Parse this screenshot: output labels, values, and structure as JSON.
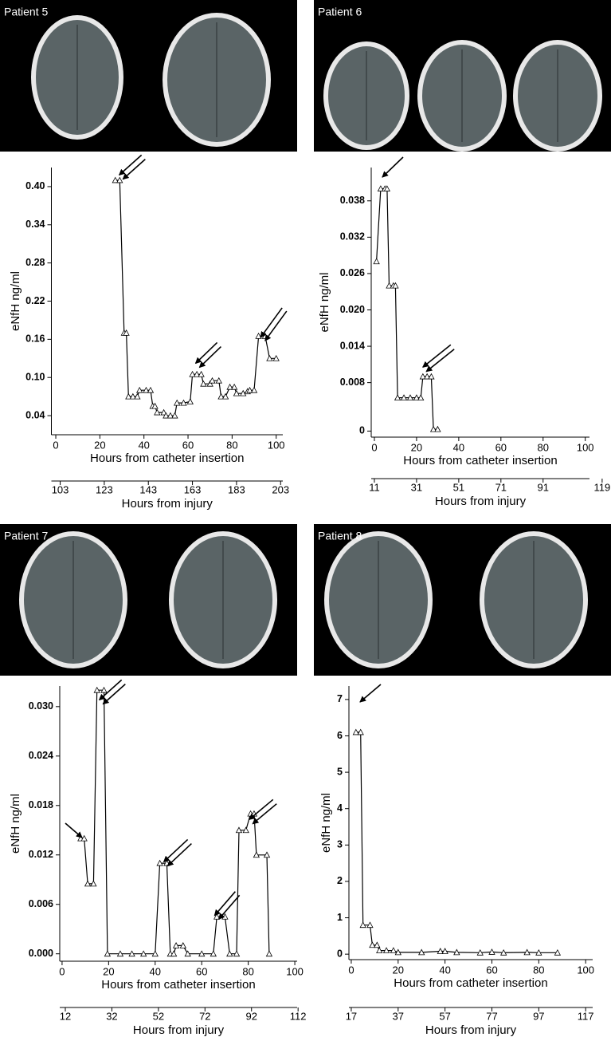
{
  "chart_data": [
    {
      "type": "line",
      "title": "Patient 5",
      "ylabel": "eNfH ng/ml",
      "xlabel": "Hours from catheter insertion",
      "x2label": "Hours from injury",
      "color": "#000000",
      "x": [
        27,
        29,
        31,
        32,
        33,
        35,
        37,
        38,
        41,
        43,
        44,
        45,
        46,
        49,
        50,
        52,
        54,
        55,
        58,
        61,
        62,
        64,
        66,
        67,
        70,
        71,
        74,
        75,
        77,
        79,
        81,
        82,
        85,
        87,
        88,
        90,
        92,
        95,
        97,
        100
      ],
      "values": [
        0.41,
        0.41,
        0.17,
        0.17,
        0.07,
        0.07,
        0.07,
        0.08,
        0.08,
        0.08,
        0.055,
        0.055,
        0.045,
        0.045,
        0.04,
        0.04,
        0.04,
        0.06,
        0.06,
        0.062,
        0.105,
        0.105,
        0.105,
        0.09,
        0.09,
        0.095,
        0.095,
        0.07,
        0.07,
        0.085,
        0.085,
        0.075,
        0.075,
        0.078,
        0.08,
        0.08,
        0.165,
        0.165,
        0.13,
        0.13
      ],
      "xlim": [
        -2,
        103
      ],
      "xticks": [
        0,
        20,
        40,
        60,
        80,
        100
      ],
      "ylim": [
        0.01,
        0.43
      ],
      "yticks": [
        0.04,
        {
          "value": 0.1,
          "label": "0.10"
        },
        0.16,
        0.22,
        0.28,
        0.34,
        {
          "value": 0.4,
          "label": "0.40"
        }
      ],
      "x2lim": [
        99,
        204
      ],
      "x2ticks": [
        103,
        123,
        143,
        163,
        183,
        203
      ]
    },
    {
      "type": "line",
      "title": "Patient 6",
      "ylabel": "eNfH ng/ml",
      "xlabel": "Hours from catheter insertion",
      "x2label": "Hours from injury",
      "color": "#000000",
      "x": [
        1,
        3,
        5,
        6,
        7,
        9,
        10,
        11,
        14,
        17,
        20,
        22,
        23,
        25,
        27,
        28,
        30
      ],
      "values": [
        0.028,
        0.04,
        0.04,
        0.04,
        0.024,
        0.024,
        0.024,
        0.0055,
        0.0055,
        0.0055,
        0.0055,
        0.0055,
        0.009,
        0.009,
        0.009,
        0.0003,
        0.0003
      ],
      "xlim": [
        -1.5,
        102
      ],
      "xticks": [
        0,
        20,
        40,
        60,
        80,
        100
      ],
      "ylim": [
        -0.001,
        0.0435
      ],
      "yticks": [
        0,
        0.008,
        0.014,
        {
          "value": 0.02,
          "label": "0.020"
        },
        0.026,
        0.032,
        0.038
      ],
      "x2lim": [
        9.5,
        113
      ],
      "x2ticks": [
        11,
        31,
        51,
        71,
        91,
        119
      ]
    },
    {
      "type": "line",
      "title": "Patient 7",
      "ylabel": "eNfH ng/ml",
      "xlabel": "Hours from catheter insertion",
      "x2label": "Hours from injury",
      "color": "#000000",
      "x": [
        8,
        9.5,
        11,
        13.5,
        15,
        18,
        19.5,
        25,
        30,
        35,
        40,
        42,
        45,
        46.5,
        48,
        49,
        52,
        54,
        60,
        65,
        66.5,
        70,
        72,
        75,
        76,
        79,
        81,
        82.5,
        83.5,
        88,
        89
      ],
      "values": [
        0.014,
        0.014,
        0.0085,
        0.0085,
        0.032,
        0.032,
        0,
        0,
        0,
        0,
        0,
        0.011,
        0.011,
        0,
        0,
        0.001,
        0.001,
        0,
        0,
        0,
        0.0045,
        0.0045,
        0,
        0,
        0.015,
        0.015,
        0.017,
        0.017,
        0.012,
        0.012,
        0
      ],
      "xlim": [
        -1,
        101
      ],
      "xticks": [
        0,
        20,
        40,
        60,
        80,
        100
      ],
      "ylim": [
        -0.0009,
        0.0325
      ],
      "yticks": [
        {
          "value": 0,
          "label": "0.000"
        },
        0.006,
        0.012,
        0.018,
        0.024,
        {
          "value": 0.03,
          "label": "0.030"
        }
      ],
      "x2lim": [
        9.6,
        111.6
      ],
      "x2ticks": [
        12,
        32,
        52,
        72,
        92,
        112
      ]
    },
    {
      "type": "line",
      "title": "Patient 8",
      "ylabel": "eNfH ng/ml",
      "xlabel": "Hours from catheter insertion",
      "x2label": "Hours from injury",
      "color": "#000000",
      "x": [
        2,
        4,
        5,
        8,
        9,
        11,
        12,
        15,
        18,
        20,
        30,
        38,
        40,
        45,
        55,
        60,
        65,
        75,
        80,
        88
      ],
      "values": [
        6.1,
        6.1,
        0.8,
        0.8,
        0.25,
        0.25,
        0.1,
        0.1,
        0.1,
        0.05,
        0.05,
        0.08,
        0.08,
        0.05,
        0.04,
        0.06,
        0.04,
        0.05,
        0.04,
        0.04
      ],
      "xlim": [
        -1,
        103
      ],
      "xticks": [
        0,
        20,
        40,
        60,
        80,
        100
      ],
      "ylim": [
        -0.15,
        7.37
      ],
      "yticks": [
        0,
        1,
        2,
        3,
        4,
        5,
        6,
        7
      ],
      "x2lim": [
        16,
        120
      ],
      "x2ticks": [
        17,
        37,
        57,
        77,
        97,
        117
      ]
    }
  ]
}
